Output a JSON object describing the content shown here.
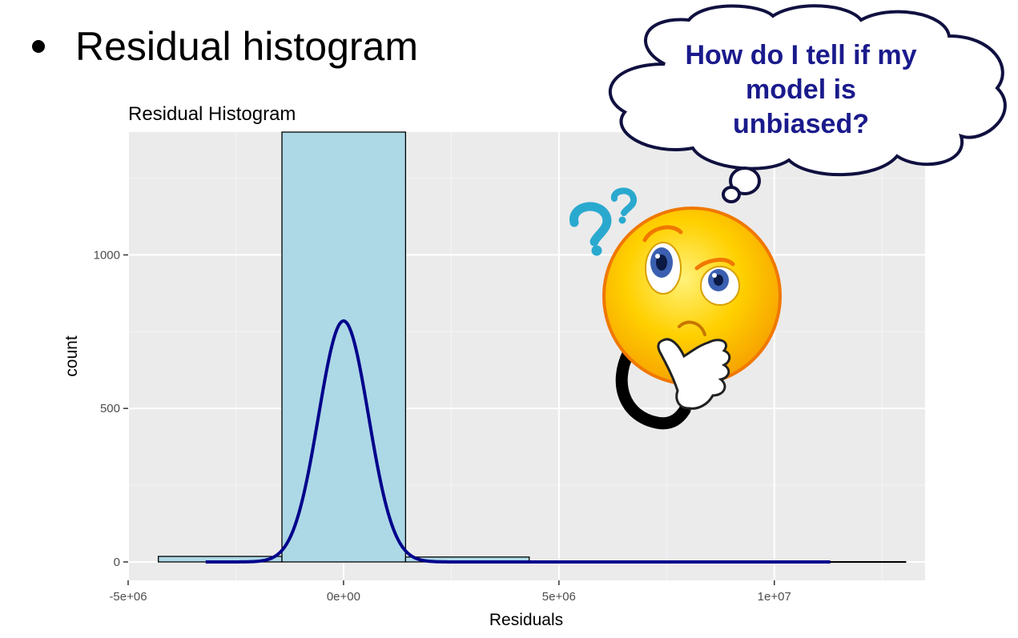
{
  "slide": {
    "bullet_text": "Residual histogram"
  },
  "thought_bubble": {
    "text": "How do I tell if my model is unbiased?",
    "color": "#1a1a8c"
  },
  "decoration": {
    "face_icon": "thinking-face-icon",
    "question_icon": "question-mark-icon"
  },
  "chart_data": {
    "type": "bar",
    "title": "Residual Histogram",
    "xlabel": "Residuals",
    "ylabel": "count",
    "xlim": [
      -5000000,
      13500000
    ],
    "ylim": [
      -60,
      1400
    ],
    "x_ticks": [
      {
        "value": -5000000,
        "label": "-5e+06"
      },
      {
        "value": 0,
        "label": "0e+00"
      },
      {
        "value": 5000000,
        "label": "5e+06"
      },
      {
        "value": 10000000,
        "label": "1e+07"
      }
    ],
    "y_ticks": [
      {
        "value": 0,
        "label": "0"
      },
      {
        "value": 500,
        "label": "500"
      },
      {
        "value": 1000,
        "label": "1000"
      }
    ],
    "bins": [
      {
        "x0": -4300000,
        "x1": -1430000,
        "count": 18
      },
      {
        "x0": -1430000,
        "x1": 1440000,
        "count": 1400
      },
      {
        "x0": 1440000,
        "x1": 4310000,
        "count": 16
      },
      {
        "x0": 4310000,
        "x1": 13050000,
        "count": 1
      }
    ],
    "bar_fill": "#add8e6",
    "bar_stroke": "#000000",
    "density_curve": {
      "mean": 0,
      "sd": 580000,
      "peak": 785,
      "x_range": [
        -3200000,
        11300000
      ],
      "color": "#00008b"
    },
    "panel_background": "#ebebeb",
    "grid": true
  }
}
